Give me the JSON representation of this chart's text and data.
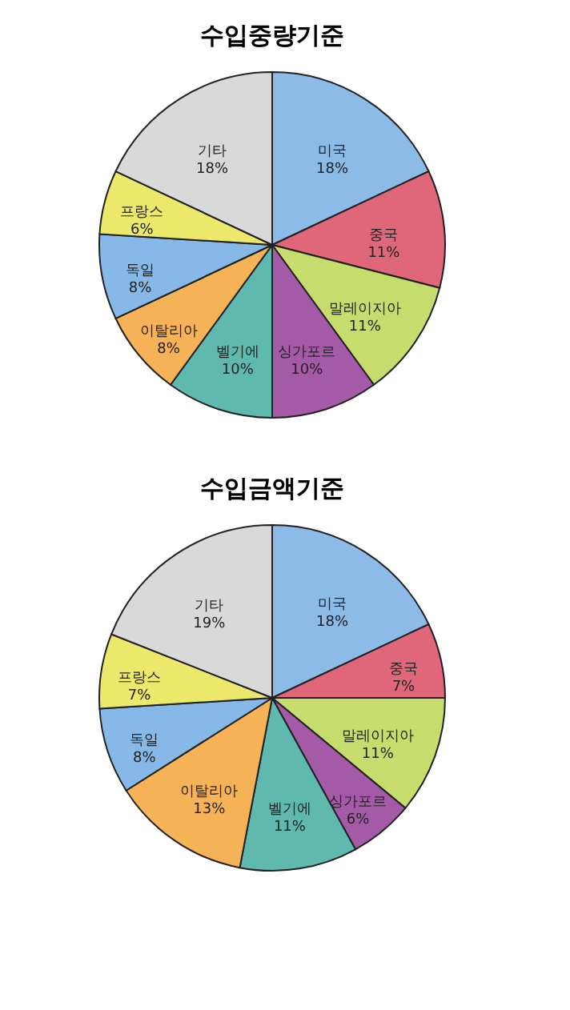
{
  "chart_data": [
    {
      "type": "pie",
      "title": "수입중량기준",
      "categories": [
        "미국",
        "중국",
        "말레이지아",
        "싱가포르",
        "벨기에",
        "이탈리아",
        "독일",
        "프랑스",
        "기타"
      ],
      "values": [
        18,
        11,
        11,
        10,
        10,
        8,
        8,
        6,
        18
      ],
      "colors": [
        "#8dbbe8",
        "#e0677a",
        "#c6dc6c",
        "#a55aa8",
        "#5fb9ae",
        "#f6b257",
        "#86b9e7",
        "#ece86c",
        "#d9d9d9"
      ],
      "value_labels": [
        "18%",
        "11%",
        "11%",
        "10%",
        "10%",
        "8%",
        "8%",
        "6%",
        "18%"
      ],
      "legend": false
    },
    {
      "type": "pie",
      "title": "수입금액기준",
      "categories": [
        "미국",
        "중국",
        "말레이지아",
        "싱가포르",
        "벨기에",
        "이탈리아",
        "독일",
        "프랑스",
        "기타"
      ],
      "values": [
        18,
        7,
        11,
        6,
        11,
        13,
        8,
        7,
        19
      ],
      "colors": [
        "#8dbbe8",
        "#e0677a",
        "#c6dc6c",
        "#a55aa8",
        "#5fb9ae",
        "#f6b257",
        "#86b9e7",
        "#ece86c",
        "#d9d9d9"
      ],
      "value_labels": [
        "18%",
        "7%",
        "11%",
        "6%",
        "11%",
        "13%",
        "8%",
        "7%",
        "19%"
      ],
      "legend": false
    }
  ]
}
